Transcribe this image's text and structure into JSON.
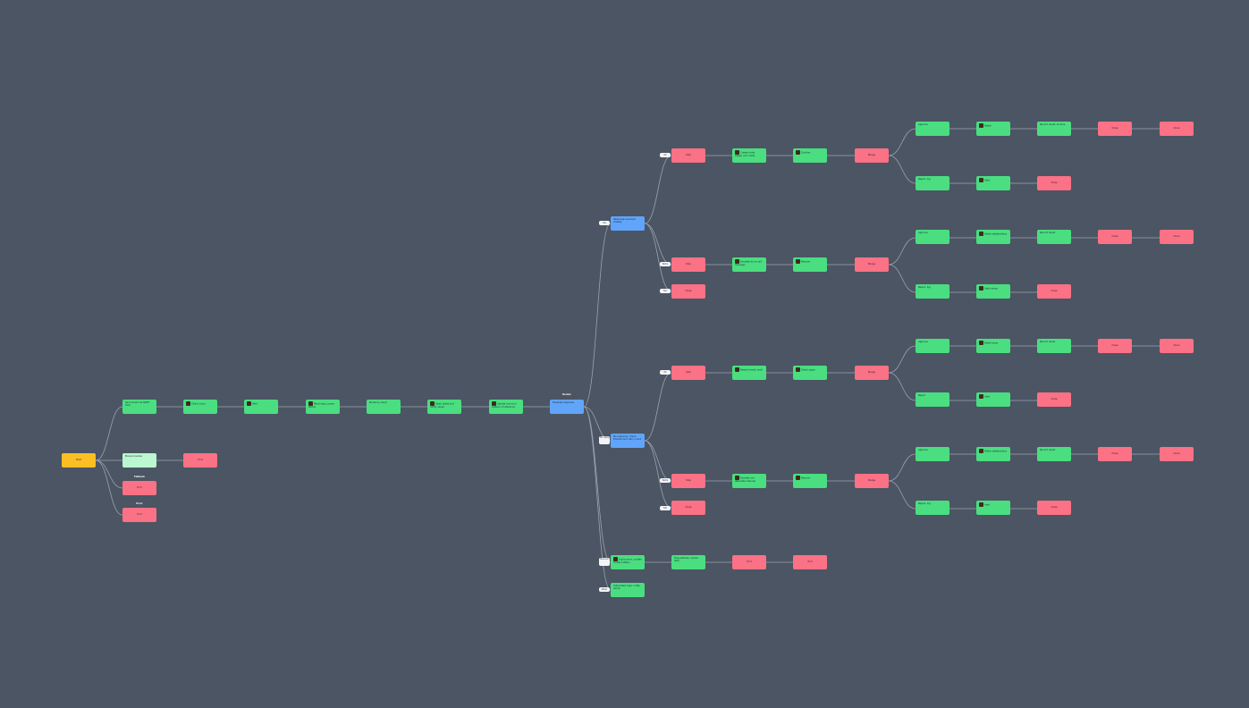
{
  "colors": {
    "background": "#4b5563",
    "edge": "#9ca3af",
    "start": "#fbbf24",
    "action": "#4ade80",
    "action_light": "#bbf7d0",
    "decision": "#60a5fa",
    "end": "#fb7185",
    "label": "#f3f4f6"
  },
  "flow": {
    "start": {
      "label": "Start"
    },
    "main_chain": [
      {
        "text": "Send email via SMTP host",
        "icon": false
      },
      {
        "text": "Check inbox",
        "icon": true
      },
      {
        "text": "Wait",
        "icon": true
      },
      {
        "text": "Read reply, parse status",
        "icon": true
      },
      {
        "text": "Route by result",
        "icon": false
      },
      {
        "text": "Open ticket and notify owner",
        "icon": true
      },
      {
        "text": "Update record in system of reference",
        "icon": true
      }
    ],
    "router": {
      "caption": "Router",
      "text": "Evaluate response"
    },
    "side_branch": {
      "text": "Manual review",
      "end": "End",
      "end1_caption": "Fallback",
      "end1": "End",
      "end2_caption": "Error",
      "end2": "End"
    },
    "branch_upper": {
      "pill": "Yes",
      "decision": "Response received, classify",
      "labels": [
        "Ok",
        "Retry",
        "Fail"
      ],
      "end_fail": "Close",
      "row_a": {
        "end": "Stop",
        "steps": [
          "Create order, assign and notify",
          "Confirm"
        ],
        "merge": "Merge",
        "sub1": [
          "Approve",
          "Notify",
          "Record result, archive",
          "Close",
          "Done"
        ],
        "sub2": [
          "Reject, log",
          "Alert",
          "Close"
        ]
      },
      "row_b": {
        "end": "Stop",
        "steps": [
          "Escalate to on-call manager",
          "Resolve"
        ],
        "merge": "Merge",
        "sub1": [
          "Approve",
          "Notify stakeholders",
          "Record result",
          "Close",
          "Done"
        ],
        "sub2": [
          "Reject, log",
          "Alert owner",
          "Close"
        ]
      }
    },
    "branch_lower": {
      "pill": "No reply",
      "decision": "No response, check timeout and retry count",
      "labels": [
        "Ok",
        "Retry",
        "Fail"
      ],
      "end_fail": "Close",
      "row_a": {
        "end": "Stop",
        "steps": [
          "Resend email, wait",
          "Check again"
        ],
        "merge": "Merge",
        "sub1": [
          "Approve",
          "Notify team",
          "Record result",
          "Close",
          "Done"
        ],
        "sub2": [
          "Reject",
          "Alert",
          "Close"
        ]
      },
      "row_b": {
        "end": "Stop",
        "steps": [
          "Escalate via alternate channel",
          "Resolve"
        ],
        "merge": "Merge",
        "sub1": [
          "Approve",
          "Notify stakeholders",
          "Record result",
          "Close",
          "Done"
        ],
        "sub2": [
          "Reject, log",
          "Alert",
          "Close"
        ]
      }
    },
    "branch_third": {
      "pill": "Bounce",
      "action": "Log bounce, update contact status",
      "next": "Flag address, review later",
      "end1": "End",
      "end2": "End"
    },
    "branch_fourth": {
      "pill": "Other",
      "action": "Unhandled case, notify admin"
    }
  }
}
